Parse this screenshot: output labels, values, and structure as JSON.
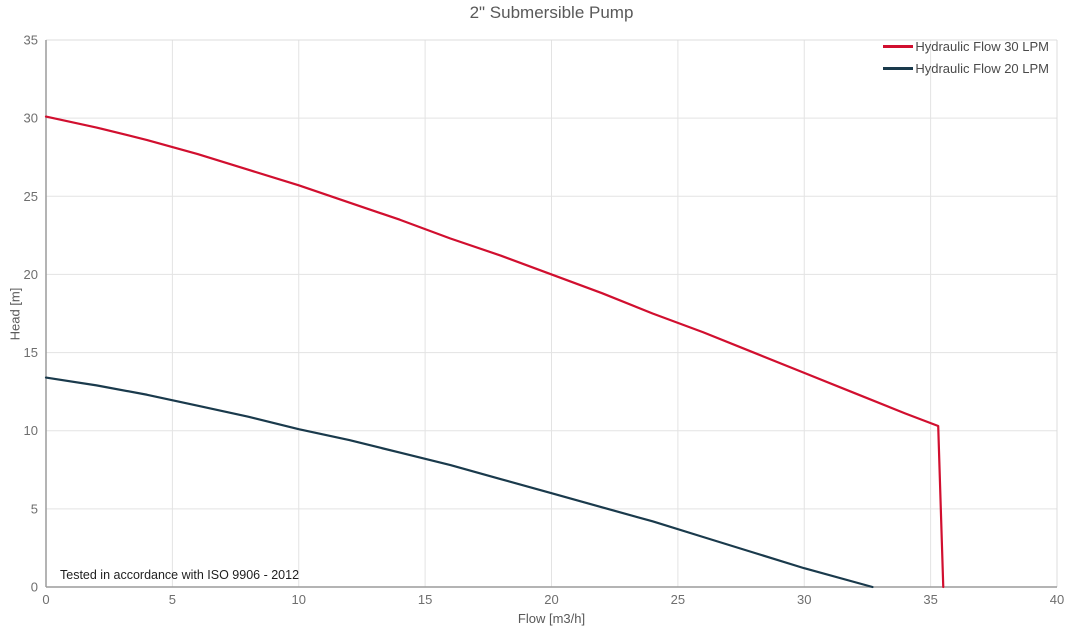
{
  "title": "2\" Submersible Pump",
  "annotation": "Tested in accordance with ISO 9906 - 2012",
  "colors": {
    "title_text": "#595959",
    "tick_text": "#6e6e6e",
    "grid": "#e3e3e3",
    "axis_dark": "#9c9c9c",
    "axis_light": "#dcdcdc",
    "series_red": "#d10f2f",
    "series_navy": "#1a3a4c"
  },
  "chart_data": {
    "type": "line",
    "title": "2\" Submersible Pump",
    "xlabel": "Flow [m3/h]",
    "ylabel": "Head [m]",
    "xlim": [
      0,
      40
    ],
    "ylim": [
      0,
      35
    ],
    "xticks": [
      0,
      5,
      10,
      15,
      20,
      25,
      30,
      35,
      40
    ],
    "yticks": [
      0,
      5,
      10,
      15,
      20,
      25,
      30,
      35
    ],
    "grid": true,
    "legend_position": "top-right",
    "annotation": "Tested in accordance with ISO 9906 - 2012",
    "series": [
      {
        "name": "Hydraulic Flow 30 LPM",
        "color": "#d10f2f",
        "points": [
          [
            0,
            30.1
          ],
          [
            2,
            29.4
          ],
          [
            4,
            28.6
          ],
          [
            6,
            27.7
          ],
          [
            8,
            26.7
          ],
          [
            10,
            25.7
          ],
          [
            12,
            24.6
          ],
          [
            14,
            23.5
          ],
          [
            16,
            22.3
          ],
          [
            18,
            21.2
          ],
          [
            20,
            20.0
          ],
          [
            22,
            18.8
          ],
          [
            24,
            17.5
          ],
          [
            26,
            16.3
          ],
          [
            28,
            15.0
          ],
          [
            30,
            13.7
          ],
          [
            32,
            12.4
          ],
          [
            34,
            11.1
          ],
          [
            35.3,
            10.3
          ],
          [
            35.5,
            0
          ]
        ]
      },
      {
        "name": "Hydraulic Flow 20 LPM",
        "color": "#1a3a4c",
        "points": [
          [
            0,
            13.4
          ],
          [
            2,
            12.9
          ],
          [
            4,
            12.3
          ],
          [
            6,
            11.6
          ],
          [
            8,
            10.9
          ],
          [
            10,
            10.1
          ],
          [
            12,
            9.4
          ],
          [
            14,
            8.6
          ],
          [
            16,
            7.8
          ],
          [
            18,
            6.9
          ],
          [
            20,
            6.0
          ],
          [
            22,
            5.1
          ],
          [
            24,
            4.2
          ],
          [
            26,
            3.2
          ],
          [
            28,
            2.2
          ],
          [
            30,
            1.2
          ],
          [
            32.7,
            0
          ]
        ]
      }
    ]
  }
}
